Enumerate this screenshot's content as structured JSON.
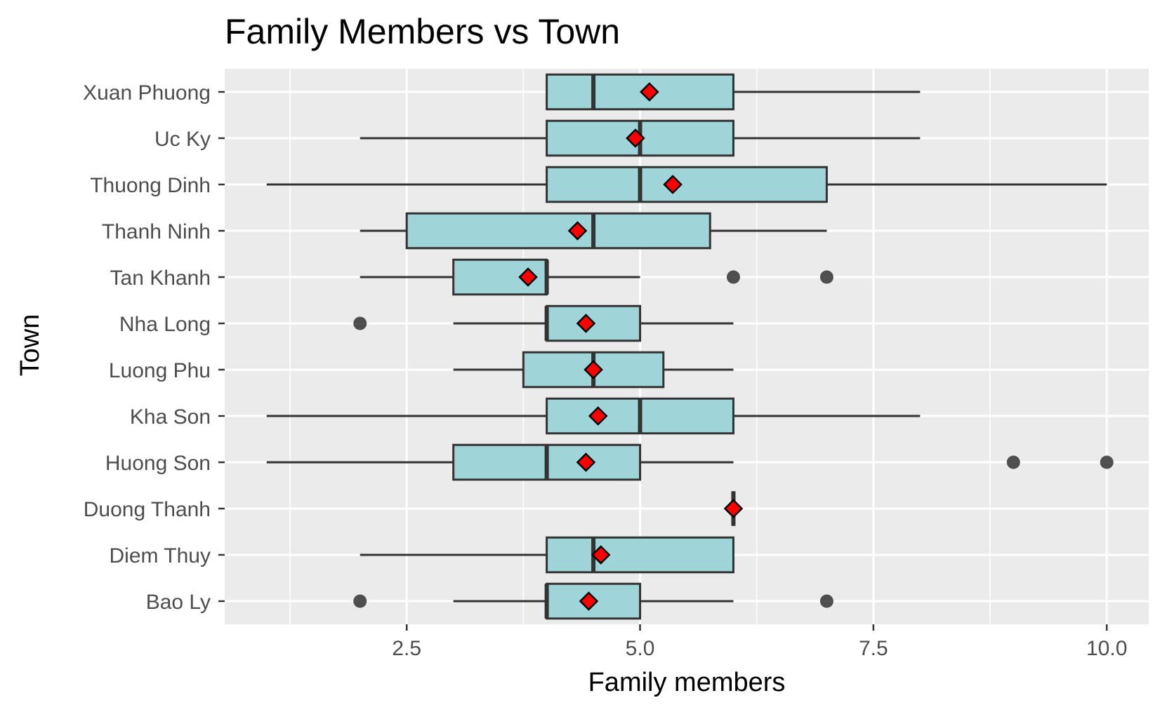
{
  "chart_data": {
    "type": "boxplot",
    "title": "Family Members vs Town",
    "xlabel": "Family members",
    "ylabel": "Town",
    "xlim": [
      0.55,
      10.45
    ],
    "x_ticks": [
      2.5,
      5.0,
      7.5,
      10.0
    ],
    "x_tick_labels": [
      "2.5",
      "5.0",
      "7.5",
      "10.0"
    ],
    "grid": true,
    "colors": {
      "panel": "#ebebeb",
      "grid": "#ffffff",
      "box_fill": "#9fd5d9",
      "box_stroke": "#333333",
      "mean_marker": "#ff0000",
      "outlier": "#333333"
    },
    "categories": [
      "Bao Ly",
      "Diem Thuy",
      "Duong Thanh",
      "Huong Son",
      "Kha Son",
      "Luong Phu",
      "Nha Long",
      "Tan Khanh",
      "Thanh Ninh",
      "Thuong Dinh",
      "Uc Ky",
      "Xuan Phuong"
    ],
    "boxes": [
      {
        "town": "Bao Ly",
        "whisker_low": 3,
        "q1": 4,
        "median": 4,
        "q3": 5,
        "whisker_high": 6,
        "mean": 4.45,
        "outliers": [
          2,
          7
        ]
      },
      {
        "town": "Diem Thuy",
        "whisker_low": 2,
        "q1": 4,
        "median": 4.5,
        "q3": 6,
        "whisker_high": 6,
        "mean": 4.58,
        "outliers": []
      },
      {
        "town": "Duong Thanh",
        "whisker_low": 6,
        "q1": 6,
        "median": 6,
        "q3": 6,
        "whisker_high": 6,
        "mean": 6.0,
        "outliers": []
      },
      {
        "town": "Huong Son",
        "whisker_low": 1,
        "q1": 3,
        "median": 4,
        "q3": 5,
        "whisker_high": 6,
        "mean": 4.42,
        "outliers": [
          9,
          10
        ]
      },
      {
        "town": "Kha Son",
        "whisker_low": 1,
        "q1": 4,
        "median": 5,
        "q3": 6,
        "whisker_high": 8,
        "mean": 4.55,
        "outliers": []
      },
      {
        "town": "Luong Phu",
        "whisker_low": 3,
        "q1": 3.75,
        "median": 4.5,
        "q3": 5.25,
        "whisker_high": 6,
        "mean": 4.5,
        "outliers": []
      },
      {
        "town": "Nha Long",
        "whisker_low": 3,
        "q1": 4,
        "median": 4,
        "q3": 5,
        "whisker_high": 6,
        "mean": 4.42,
        "outliers": [
          2
        ]
      },
      {
        "town": "Tan Khanh",
        "whisker_low": 2,
        "q1": 3,
        "median": 4,
        "q3": 4,
        "whisker_high": 5,
        "mean": 3.8,
        "outliers": [
          6,
          7
        ]
      },
      {
        "town": "Thanh Ninh",
        "whisker_low": 2,
        "q1": 2.5,
        "median": 4.5,
        "q3": 5.75,
        "whisker_high": 7,
        "mean": 4.33,
        "outliers": []
      },
      {
        "town": "Thuong Dinh",
        "whisker_low": 1,
        "q1": 4,
        "median": 5,
        "q3": 7,
        "whisker_high": 10,
        "mean": 5.35,
        "outliers": []
      },
      {
        "town": "Uc Ky",
        "whisker_low": 2,
        "q1": 4,
        "median": 5,
        "q3": 6,
        "whisker_high": 8,
        "mean": 4.95,
        "outliers": []
      },
      {
        "town": "Xuan Phuong",
        "whisker_low": 4,
        "q1": 4,
        "median": 4.5,
        "q3": 6,
        "whisker_high": 8,
        "mean": 5.1,
        "outliers": []
      }
    ]
  }
}
